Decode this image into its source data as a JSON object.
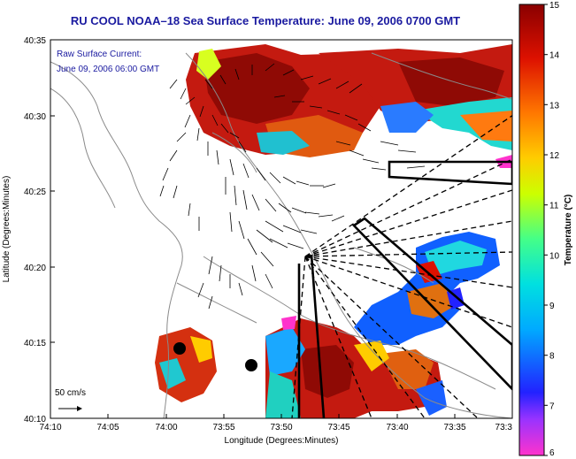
{
  "title": "RU COOL  NOAA–18  Sea Surface Temperature:  June 09, 2006 0700 GMT",
  "overlay": {
    "line1": "Raw Surface Current:",
    "line2": "June 09, 2006 06:00 GMT"
  },
  "scale": {
    "label": "50 cm/s"
  },
  "axes": {
    "xlabel": "Longitude (Degrees:Minutes)",
    "ylabel": "Latitude (Degrees:Minutes)",
    "x_ticks": [
      "74:10",
      "74:05",
      "74:00",
      "73:55",
      "73:50",
      "73:45",
      "73:40",
      "73:35",
      "73:3"
    ],
    "y_ticks": [
      "40:35",
      "40:30",
      "40:25",
      "40:20",
      "40:15",
      "40:10"
    ]
  },
  "colorbar": {
    "label": "Temperature (°C)",
    "ticks": [
      "15",
      "14",
      "13",
      "12",
      "11",
      "10",
      "9",
      "8",
      "7",
      "6"
    ],
    "min": 6,
    "max": 15
  },
  "colors": {
    "title": "#1a1aa0",
    "land_outline": "#888888",
    "vectors": "#000000"
  }
}
